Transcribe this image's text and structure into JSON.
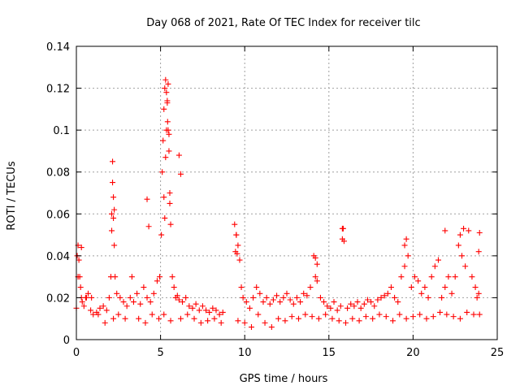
{
  "chart_data": {
    "type": "scatter",
    "title": "Day 068 of 2021, Rate Of TEC Index for receiver tilc",
    "xlabel": "GPS time / hours",
    "ylabel": "ROTI / TECUs",
    "xlim": [
      0,
      25
    ],
    "ylim": [
      0,
      0.14
    ],
    "xticks": [
      0,
      5,
      10,
      15,
      20,
      25
    ],
    "xtick_labels": [
      "0",
      "5",
      "10",
      "15",
      "20",
      "25"
    ],
    "yticks": [
      0,
      0.02,
      0.04,
      0.06,
      0.08,
      0.1,
      0.12,
      0.14
    ],
    "ytick_labels": [
      "0",
      "0.02",
      "0.04",
      "0.06",
      "0.08",
      "0.1",
      "0.12",
      "0.14"
    ],
    "grid": true,
    "marker": "+",
    "color": "#ff0000",
    "series": [
      {
        "name": "ROTI",
        "x": [
          0.0,
          0.05,
          0.1,
          0.15,
          0.2,
          0.25,
          0.3,
          0.35,
          0.45,
          0.55,
          0.7,
          0.85,
          1.0,
          1.2,
          1.4,
          1.6,
          1.8,
          1.95,
          2.05,
          2.1,
          2.15,
          2.2,
          2.25,
          2.3,
          2.4,
          2.6,
          2.8,
          3.0,
          3.2,
          3.4,
          3.6,
          3.8,
          4.0,
          4.2,
          4.4,
          4.6,
          4.8,
          4.95,
          5.05,
          5.1,
          5.15,
          5.2,
          5.25,
          5.3,
          5.35,
          5.4,
          5.45,
          5.5,
          5.55,
          5.6,
          5.7,
          5.8,
          5.9,
          6.0,
          6.1,
          6.3,
          6.5,
          6.7,
          6.9,
          7.1,
          7.3,
          7.5,
          7.7,
          7.9,
          8.1,
          8.3,
          8.5,
          8.7,
          9.4,
          9.5,
          9.6,
          9.7,
          9.8,
          9.9,
          10.1,
          10.3,
          10.5,
          10.7,
          10.9,
          11.1,
          11.3,
          11.5,
          11.7,
          11.9,
          12.1,
          12.3,
          12.5,
          12.7,
          12.9,
          13.1,
          13.3,
          13.5,
          13.7,
          13.9,
          14.1,
          14.2,
          14.3,
          14.5,
          14.7,
          14.9,
          15.1,
          15.3,
          15.5,
          15.7,
          15.8,
          15.9,
          16.1,
          16.3,
          16.5,
          16.7,
          16.9,
          17.1,
          17.3,
          17.5,
          17.7,
          17.9,
          18.1,
          18.3,
          18.5,
          18.7,
          18.9,
          19.1,
          19.3,
          19.5,
          19.6,
          19.7,
          19.9,
          20.1,
          20.3,
          20.5,
          20.7,
          20.9,
          21.1,
          21.3,
          21.5,
          21.7,
          21.9,
          22.1,
          22.3,
          22.5,
          22.7,
          22.9,
          23.1,
          23.3,
          23.5,
          23.7,
          23.8,
          23.9,
          0.1,
          0.3,
          0.6,
          0.9,
          1.3,
          1.7,
          2.2,
          2.5,
          2.9,
          3.3,
          3.7,
          4.1,
          4.5,
          4.9,
          5.2,
          5.6,
          6.2,
          6.6,
          7.0,
          7.4,
          7.8,
          8.2,
          8.6,
          9.6,
          10.0,
          10.4,
          10.8,
          11.2,
          11.6,
          12.0,
          12.4,
          12.8,
          13.2,
          13.6,
          14.0,
          14.4,
          14.8,
          15.2,
          15.6,
          16.0,
          16.4,
          16.8,
          17.2,
          17.6,
          18.0,
          18.4,
          18.8,
          19.2,
          19.6,
          20.0,
          20.4,
          20.8,
          21.2,
          21.6,
          22.0,
          22.4,
          22.8,
          23.2,
          23.6,
          23.95,
          5.3,
          5.35,
          5.4,
          5.42,
          5.45,
          5.5,
          5.55,
          5.2,
          5.25,
          4.2,
          4.3,
          2.15,
          2.2,
          2.25,
          2.1,
          6.1,
          6.2,
          14.2,
          14.3,
          15.8,
          15.85,
          19.5,
          21.9,
          22.8,
          23.0,
          23.9,
          23.95,
          9.45,
          9.5,
          9.55
        ],
        "y": [
          0.015,
          0.04,
          0.045,
          0.038,
          0.03,
          0.025,
          0.02,
          0.018,
          0.016,
          0.02,
          0.022,
          0.014,
          0.012,
          0.013,
          0.015,
          0.016,
          0.014,
          0.02,
          0.03,
          0.06,
          0.085,
          0.058,
          0.045,
          0.03,
          0.022,
          0.02,
          0.018,
          0.016,
          0.02,
          0.018,
          0.022,
          0.017,
          0.025,
          0.02,
          0.018,
          0.022,
          0.028,
          0.03,
          0.05,
          0.08,
          0.095,
          0.11,
          0.12,
          0.087,
          0.1,
          0.113,
          0.122,
          0.09,
          0.07,
          0.055,
          0.03,
          0.025,
          0.02,
          0.021,
          0.019,
          0.018,
          0.02,
          0.016,
          0.015,
          0.017,
          0.014,
          0.016,
          0.014,
          0.013,
          0.015,
          0.014,
          0.012,
          0.013,
          0.055,
          0.05,
          0.045,
          0.038,
          0.025,
          0.02,
          0.018,
          0.015,
          0.02,
          0.025,
          0.022,
          0.018,
          0.02,
          0.017,
          0.019,
          0.021,
          0.018,
          0.02,
          0.022,
          0.019,
          0.017,
          0.02,
          0.018,
          0.022,
          0.021,
          0.025,
          0.04,
          0.03,
          0.028,
          0.02,
          0.018,
          0.016,
          0.015,
          0.018,
          0.014,
          0.016,
          0.053,
          0.047,
          0.015,
          0.017,
          0.016,
          0.018,
          0.015,
          0.017,
          0.019,
          0.018,
          0.016,
          0.019,
          0.02,
          0.021,
          0.022,
          0.025,
          0.02,
          0.018,
          0.03,
          0.035,
          0.048,
          0.04,
          0.025,
          0.03,
          0.028,
          0.022,
          0.025,
          0.02,
          0.03,
          0.035,
          0.038,
          0.02,
          0.025,
          0.03,
          0.022,
          0.03,
          0.045,
          0.04,
          0.035,
          0.052,
          0.03,
          0.025,
          0.02,
          0.022,
          0.03,
          0.044,
          0.02,
          0.02,
          0.012,
          0.008,
          0.01,
          0.012,
          0.01,
          0.03,
          0.01,
          0.008,
          0.012,
          0.01,
          0.012,
          0.009,
          0.01,
          0.012,
          0.01,
          0.008,
          0.009,
          0.01,
          0.008,
          0.009,
          0.008,
          0.006,
          0.012,
          0.008,
          0.006,
          0.01,
          0.009,
          0.011,
          0.01,
          0.012,
          0.011,
          0.01,
          0.012,
          0.01,
          0.009,
          0.008,
          0.01,
          0.009,
          0.011,
          0.01,
          0.012,
          0.011,
          0.009,
          0.012,
          0.01,
          0.011,
          0.012,
          0.01,
          0.011,
          0.013,
          0.012,
          0.011,
          0.01,
          0.013,
          0.012,
          0.012,
          0.124,
          0.118,
          0.114,
          0.104,
          0.1,
          0.098,
          0.065,
          0.068,
          0.058,
          0.067,
          0.054,
          0.075,
          0.068,
          0.062,
          0.052,
          0.088,
          0.079,
          0.039,
          0.036,
          0.048,
          0.053,
          0.045,
          0.052,
          0.05,
          0.053,
          0.042,
          0.051,
          0.042,
          0.05,
          0.041
        ]
      }
    ]
  }
}
